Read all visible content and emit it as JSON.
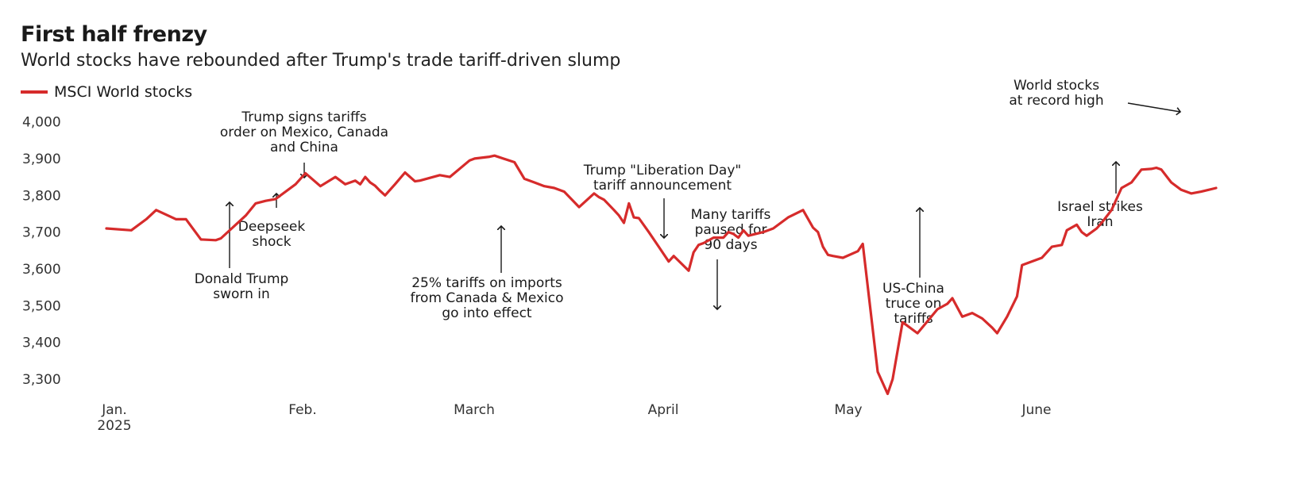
{
  "chart_data": {
    "type": "line",
    "title": "First half frenzy",
    "subtitle": "World stocks have rebounded after Trump's trade tariff-driven slump",
    "series": [
      {
        "name": "MSCI World stocks",
        "color": "#d62b2b",
        "x": [
          0,
          5,
          8,
          10,
          14,
          16,
          19,
          22,
          23,
          28,
          30,
          32,
          34,
          38,
          40,
          43,
          46,
          48,
          50,
          51,
          52,
          53,
          54,
          55,
          56,
          58,
          60,
          62,
          63,
          67,
          69,
          73,
          74,
          77,
          78,
          82,
          84,
          86,
          88,
          90,
          92,
          95,
          98,
          99,
          100,
          102,
          103,
          104,
          105,
          106,
          107,
          109,
          111,
          112,
          113,
          114,
          117,
          118,
          119,
          120,
          122,
          124,
          125,
          126,
          127,
          128,
          129,
          132,
          134,
          137,
          140,
          142,
          143,
          144,
          145,
          146,
          148,
          151,
          152,
          155,
          157,
          158,
          160,
          163,
          167,
          169,
          170,
          172,
          174,
          176,
          178,
          179,
          181,
          183,
          184,
          188,
          189,
          190,
          192,
          193,
          195,
          196,
          197,
          199,
          200,
          202,
          204,
          206,
          208,
          210,
          211,
          212,
          214,
          216,
          218,
          220,
          223
        ],
        "values": [
          3710,
          3705,
          3735,
          3760,
          3735,
          3735,
          3680,
          3678,
          3683,
          3745,
          3778,
          3785,
          3790,
          3830,
          3860,
          3825,
          3850,
          3830,
          3840,
          3830,
          3850,
          3835,
          3826,
          3812,
          3800,
          3830,
          3862,
          3838,
          3840,
          3855,
          3850,
          3895,
          3900,
          3905,
          3908,
          3890,
          3845,
          3835,
          3825,
          3820,
          3810,
          3768,
          3805,
          3795,
          3788,
          3760,
          3745,
          3725,
          3778,
          3740,
          3738,
          3700,
          3660,
          3640,
          3620,
          3635,
          3595,
          3645,
          3665,
          3670,
          3685,
          3685,
          3700,
          3695,
          3685,
          3705,
          3690,
          3700,
          3710,
          3740,
          3760,
          3712,
          3700,
          3660,
          3638,
          3635,
          3630,
          3648,
          3668,
          3320,
          3260,
          3300,
          3455,
          3425,
          3490,
          3505,
          3520,
          3470,
          3480,
          3465,
          3440,
          3425,
          3470,
          3525,
          3610,
          3630,
          3645,
          3660,
          3665,
          3705,
          3720,
          3700,
          3690,
          3710,
          3725,
          3760,
          3820,
          3835,
          3870,
          3872,
          3875,
          3870,
          3835,
          3815,
          3805,
          3810,
          3820
        ]
      }
    ],
    "x_tick_labels": [
      "Jan.",
      "Feb.",
      "March",
      "April",
      "May",
      "June"
    ],
    "x_tick_sublabel": "2025",
    "y_tick_labels": [
      "3,300",
      "3,400",
      "3,500",
      "3,600",
      "3,700",
      "3,800",
      "3,900",
      "4,000"
    ],
    "ylim": [
      3260,
      4020
    ],
    "annotations": [
      {
        "lines": [
          "Trump signs tariffs",
          "order on Mexico, Canada",
          "and China"
        ]
      },
      {
        "lines": [
          "Deepseek",
          "shock"
        ]
      },
      {
        "lines": [
          "Donald Trump",
          "sworn in"
        ]
      },
      {
        "lines": [
          "25% tariffs on imports",
          "from Canada & Mexico",
          "go into effect"
        ]
      },
      {
        "lines": [
          "Trump \"Liberation Day\"",
          "tariff announcement"
        ]
      },
      {
        "lines": [
          "Many tariffs",
          "paused for",
          "90 days"
        ]
      },
      {
        "lines": [
          "US-China",
          "truce on",
          "tariffs"
        ]
      },
      {
        "lines": [
          "Israel strikes",
          "Iran"
        ]
      },
      {
        "lines": [
          "World stocks",
          "at record high"
        ]
      }
    ]
  }
}
